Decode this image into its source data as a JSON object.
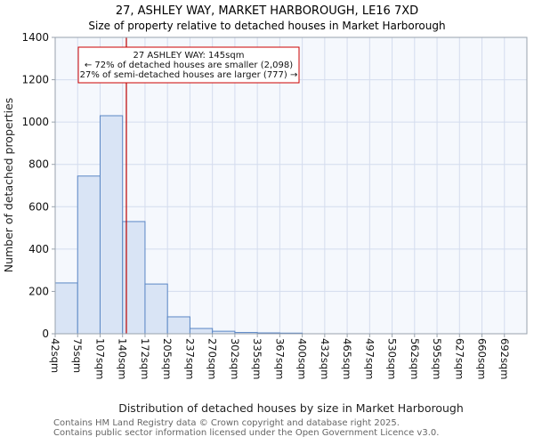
{
  "header": {
    "title": "27, ASHLEY WAY, MARKET HARBOROUGH, LE16 7XD",
    "subtitle": "Size of property relative to detached houses in Market Harborough"
  },
  "chart_data": {
    "type": "bar",
    "title": "27, ASHLEY WAY, MARKET HARBOROUGH, LE16 7XD",
    "subtitle": "Size of property relative to detached houses in Market Harborough",
    "categories": [
      "42sqm",
      "75sqm",
      "107sqm",
      "140sqm",
      "172sqm",
      "205sqm",
      "237sqm",
      "270sqm",
      "302sqm",
      "335sqm",
      "367sqm",
      "400sqm",
      "432sqm",
      "465sqm",
      "497sqm",
      "530sqm",
      "562sqm",
      "595sqm",
      "627sqm",
      "660sqm",
      "692sqm"
    ],
    "values": [
      240,
      745,
      1030,
      530,
      235,
      80,
      25,
      12,
      6,
      4,
      3,
      0,
      0,
      0,
      0,
      0,
      0,
      0,
      0,
      0,
      0
    ],
    "xlabel": "Distribution of detached houses by size in Market Harborough",
    "ylabel": "Number of detached properties",
    "ylim": [
      0,
      1400
    ],
    "yticks": [
      0,
      200,
      400,
      600,
      800,
      1000,
      1200,
      1400
    ],
    "grid": true,
    "legend": "none",
    "marker": {
      "value_sqm": 145,
      "color": "#bb0000"
    },
    "annotation": {
      "line1": "27 ASHLEY WAY: 145sqm",
      "line2": "← 72% of detached houses are smaller (2,098)",
      "line3": "27% of semi-detached houses are larger (777) →"
    },
    "colors": {
      "bar_fill": "#d9e4f5",
      "bar_stroke": "#5b87c5",
      "grid": "#d4dcee",
      "plot_bg": "#f5f8fd",
      "spine": "#98a2ad",
      "marker": "#bb0000",
      "annotation_border": "#cc0000"
    }
  },
  "footer": {
    "line1": "Contains HM Land Registry data © Crown copyright and database right 2025.",
    "line2": "Contains public sector information licensed under the Open Government Licence v3.0."
  }
}
